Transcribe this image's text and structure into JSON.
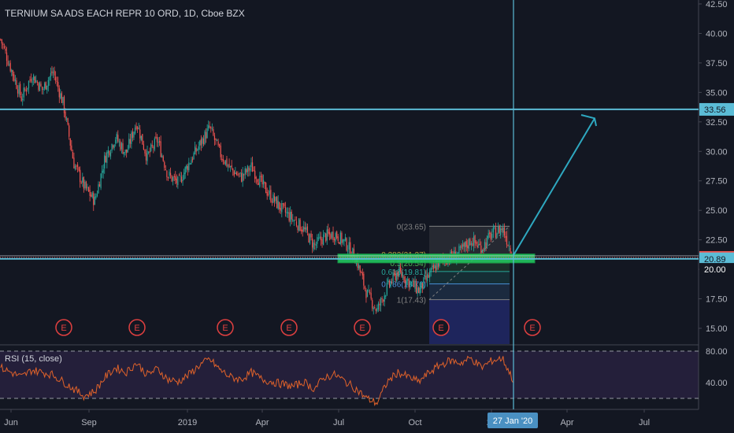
{
  "chart_data": {
    "type": "candlestick",
    "title": "TERNIUM SA ADS EACH REPR 10 ORD, 1D, Cboe BZX",
    "y_axis": {
      "ticks": [
        "42.50",
        "40.00",
        "37.50",
        "35.00",
        "32.50",
        "30.00",
        "27.50",
        "25.00",
        "22.50",
        "20.00",
        "17.50",
        "15.00"
      ],
      "range": [
        13.5,
        43.2
      ]
    },
    "x_axis": {
      "ticks": [
        "Jun",
        "Sep",
        "2019",
        "Apr",
        "Jul",
        "Oct",
        "20",
        "Apr",
        "Jul"
      ],
      "crosshair_label": "27 Jan '20"
    },
    "price_badges": [
      {
        "label": "33.56",
        "value": 33.56,
        "kind": "level"
      },
      {
        "label": "21.01",
        "value": 21.01,
        "kind": "last"
      },
      {
        "label": "20.89",
        "value": 20.89,
        "kind": "level"
      },
      {
        "label": "20.00",
        "value": 20.0,
        "kind": "tick"
      }
    ],
    "horizontal_levels": [
      33.56,
      21.01,
      20.89
    ],
    "support_zone": {
      "from": 20.55,
      "to": 21.3
    },
    "fibonacci": [
      {
        "label": "0(23.65)",
        "value": 23.65
      },
      {
        "label": "0.382(21.27)",
        "value": 21.27
      },
      {
        "label": "0.5(20.54)",
        "value": 20.54
      },
      {
        "label": "0.618(19.81)",
        "value": 19.81
      },
      {
        "label": "0.786(18.76)",
        "value": 18.76
      },
      {
        "label": "1(17.43)",
        "value": 17.43
      }
    ],
    "earnings_markers": [
      "E",
      "E",
      "E",
      "E",
      "E",
      "E",
      "E"
    ],
    "price_path": [
      39.5,
      37.0,
      34.5,
      36.5,
      35.2,
      36.8,
      34.0,
      29.0,
      27.0,
      25.8,
      29.5,
      31.2,
      29.8,
      32.5,
      29.5,
      31.0,
      28.0,
      27.3,
      29.0,
      30.5,
      32.0,
      29.8,
      28.5,
      27.8,
      28.7,
      27.2,
      26.0,
      25.0,
      24.2,
      23.4,
      22.0,
      22.8,
      23.0,
      22.2,
      20.9,
      18.0,
      16.5,
      18.5,
      19.8,
      19.0,
      18.2,
      19.5,
      20.7,
      21.0,
      21.5,
      22.5,
      21.8,
      23.0,
      23.5,
      21.2
    ],
    "rsi": {
      "label": "RSI (15, close)",
      "ticks": [
        "80.00",
        "40.00"
      ],
      "range": [
        20,
        85
      ],
      "bands": [
        30,
        70
      ],
      "values": [
        56,
        52,
        48,
        54,
        52,
        50,
        44,
        38,
        32,
        36,
        48,
        56,
        52,
        60,
        50,
        55,
        46,
        44,
        50,
        58,
        63,
        54,
        48,
        46,
        52,
        46,
        44,
        42,
        40,
        44,
        38,
        48,
        50,
        44,
        38,
        30,
        26,
        44,
        52,
        48,
        44,
        52,
        58,
        62,
        60,
        64,
        56,
        62,
        64,
        46
      ]
    }
  }
}
